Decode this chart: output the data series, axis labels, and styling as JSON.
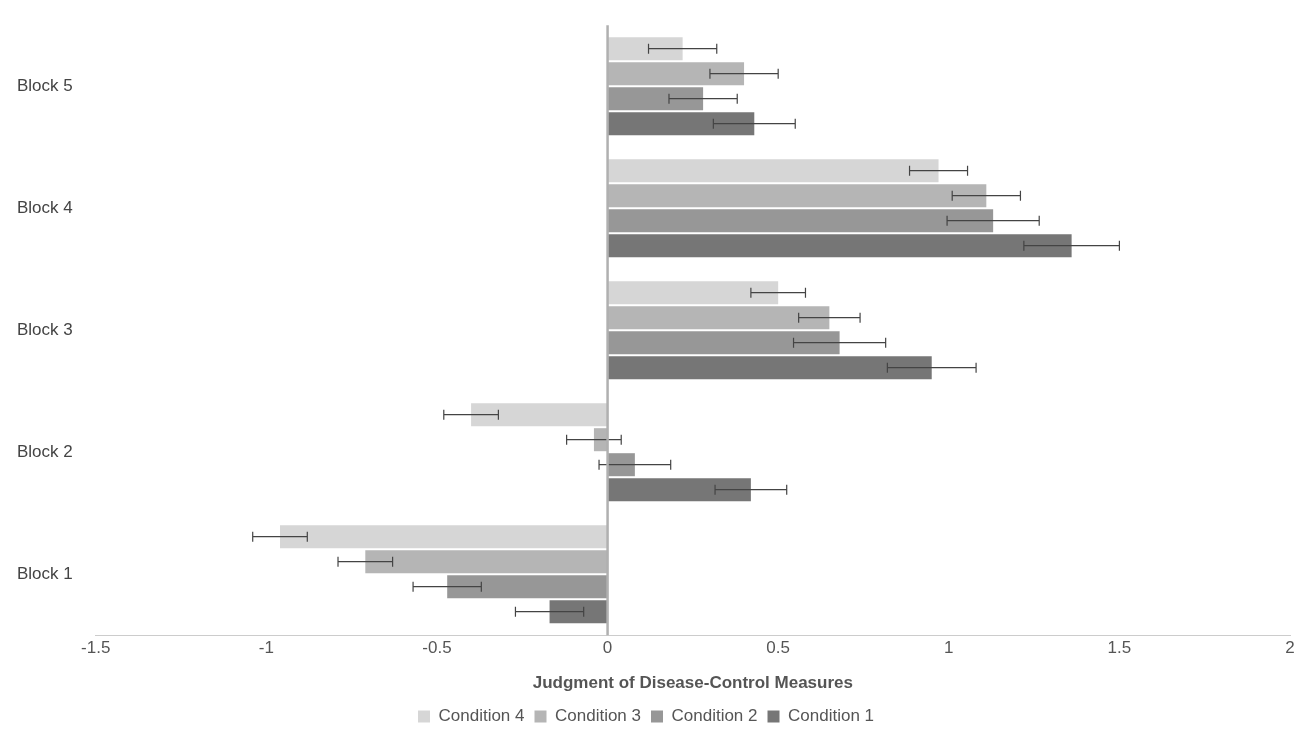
{
  "chart_data": {
    "type": "bar",
    "orientation": "horizontal",
    "xlabel": "Judgment of Disease-Control Measures",
    "categories": [
      "Block 5",
      "Block 4",
      "Block 3",
      "Block 2",
      "Block 1"
    ],
    "series": [
      {
        "name": "Condition 4",
        "color": "#d6d6d6",
        "values": [
          0.22,
          0.97,
          0.5,
          -0.4,
          -0.96
        ],
        "errors": [
          0.1,
          0.085,
          0.08,
          0.08,
          0.08
        ]
      },
      {
        "name": "Condition 3",
        "color": "#b5b5b5",
        "values": [
          0.4,
          1.11,
          0.65,
          -0.04,
          -0.71
        ],
        "errors": [
          0.1,
          0.1,
          0.09,
          0.08,
          0.08
        ]
      },
      {
        "name": "Condition 2",
        "color": "#979797",
        "values": [
          0.28,
          1.13,
          0.68,
          0.08,
          -0.47
        ],
        "errors": [
          0.1,
          0.135,
          0.135,
          0.105,
          0.1
        ]
      },
      {
        "name": "Condition 1",
        "color": "#767676",
        "values": [
          0.43,
          1.36,
          0.95,
          0.42,
          -0.17
        ],
        "errors": [
          0.12,
          0.14,
          0.13,
          0.105,
          0.1
        ]
      }
    ],
    "xlim": [
      -1.5,
      2
    ],
    "xticks": [
      -1.5,
      -1,
      -0.5,
      0,
      0.5,
      1,
      1.5,
      2
    ],
    "grid": false,
    "ref_lines": [
      {
        "axis": "x",
        "value": 0,
        "color": "#b0b0b0"
      }
    ],
    "legend": "bottom"
  }
}
